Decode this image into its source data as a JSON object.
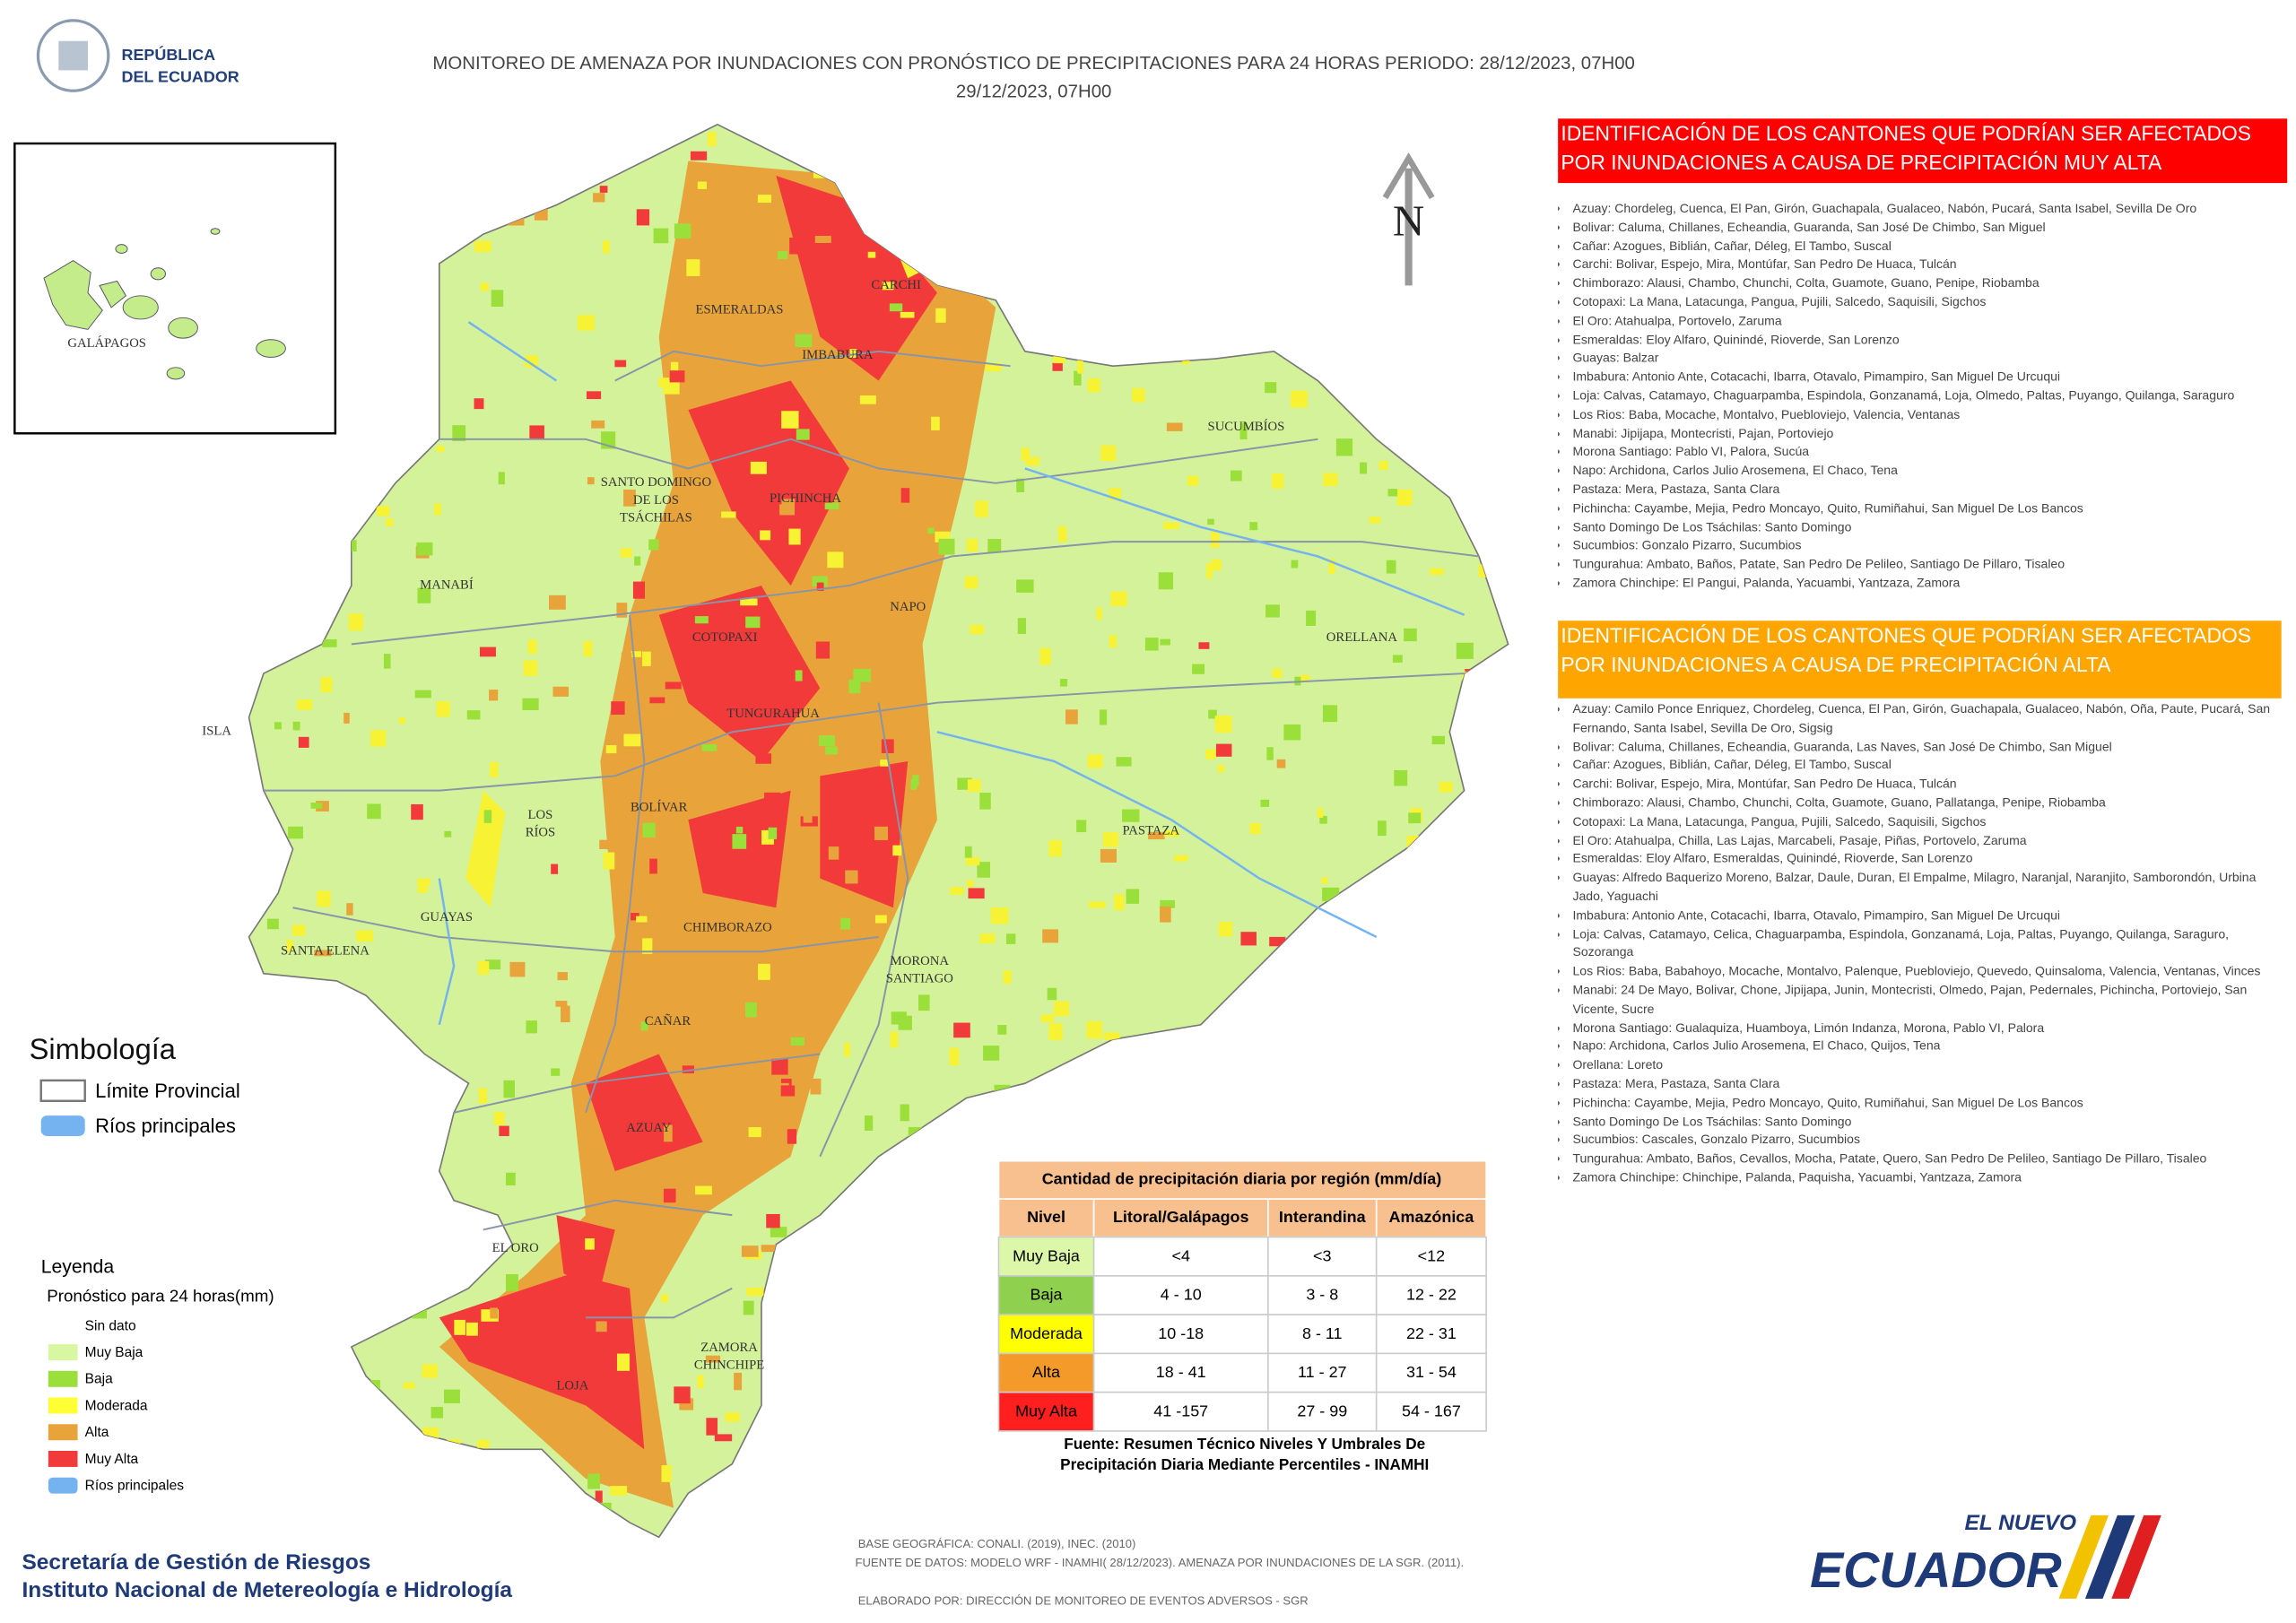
{
  "header": {
    "logo": [
      "REPÚBLICA",
      "DEL ECUADOR"
    ],
    "title": [
      "MONITOREO DE AMENAZA POR INUNDACIONES  CON PRONÓSTICO DE  PRECIPITACIONES PARA 24 HORAS  PERIODO: 28/12/2023, 07H00",
      "29/12/2023, 07H00"
    ]
  },
  "inset": {
    "label": "GALÁPAGOS"
  },
  "north": "N",
  "provinces": [
    [
      "ESMERALDAS"
    ],
    [
      "CARCHI"
    ],
    [
      "IMBABURA"
    ],
    [
      "SUCUMBÍOS"
    ],
    [
      "SANTO DOMINGO",
      "DE LOS",
      "TSÁCHILAS"
    ],
    [
      "PICHINCHA"
    ],
    [
      "MANABÍ"
    ],
    [
      "NAPO"
    ],
    [
      "COTOPAXI"
    ],
    [
      "ORELLANA"
    ],
    [
      "ISLA"
    ],
    [
      "TUNGURAHUA"
    ],
    [
      "BOLÍVAR"
    ],
    [
      "LOS",
      "RÍOS"
    ],
    [
      "PASTAZA"
    ],
    [
      "GUAYAS"
    ],
    [
      "CHIMBORAZO"
    ],
    [
      "SANTA ELENA"
    ],
    [
      "MORONA",
      "SANTIAGO"
    ],
    [
      "CAÑAR"
    ],
    [
      "AZUAY"
    ],
    [
      "EL ORO"
    ],
    [
      "ZAMORA",
      "CHINCHIPE"
    ],
    [
      "LOJA"
    ]
  ],
  "simbologia": {
    "title": "Simbología",
    "items": [
      "Límite Provincial",
      "Ríos principales"
    ]
  },
  "leyenda": {
    "title": "Leyenda",
    "subtitle": "Pronóstico para 24 horas(mm)",
    "items": [
      {
        "label": "Sin dato",
        "color": "#ffffff"
      },
      {
        "label": "Muy Baja",
        "color": "#d9f7a1"
      },
      {
        "label": "Baja",
        "color": "#9be03a"
      },
      {
        "label": "Moderada",
        "color": "#ffff33"
      },
      {
        "label": "Alta",
        "color": "#e8a33a"
      },
      {
        "label": "Muy Alta",
        "color": "#f23a3a"
      },
      {
        "label": "Ríos principales",
        "color": "#74b3f0"
      }
    ]
  },
  "table": {
    "title": "Cantidad de precipitación diaria por región (mm/día)",
    "headers": [
      "Nivel",
      "Litoral/Galápagos",
      "Interandina",
      "Amazónica"
    ],
    "rows": [
      [
        "Muy Baja",
        "<4",
        "<3",
        "<12"
      ],
      [
        "Baja",
        "4 - 10",
        "3 - 8",
        "12 - 22"
      ],
      [
        "Moderada",
        "10 -18",
        "8 - 11",
        "22 - 31"
      ],
      [
        "Alta",
        "18 - 41",
        "11 - 27",
        "31 - 54"
      ],
      [
        "Muy Alta",
        "41 -157",
        "27 - 99",
        "54 - 167"
      ]
    ],
    "row_colors": [
      "#ddf7a8",
      "#8fd14f",
      "#ffff00",
      "#f39a2b",
      "#ff1f1f"
    ],
    "source": [
      "Fuente: Resumen Técnico Niveles Y Umbrales De",
      "Precipitación Diaria Mediante Percentiles - INAMHI"
    ]
  },
  "panel_muy_alta": {
    "title": [
      "IDENTIFICACIÓN DE LOS CANTONES QUE PODRÍAN SER AFECTADOS",
      "POR INUNDACIONES  A CAUSA DE PRECIPITACIÓN MUY ALTA"
    ],
    "items": [
      "Azuay: Chordeleg, Cuenca, El Pan, Girón, Guachapala, Gualaceo, Nabón, Pucará, Santa Isabel, Sevilla De Oro",
      "Bolivar: Caluma, Chillanes, Echeandia, Guaranda, San José De Chimbo, San Miguel",
      "Cañar: Azogues, Biblián, Cañar, Déleg, El Tambo, Suscal",
      "Carchi: Bolivar, Espejo, Mira, Montúfar, San Pedro De Huaca, Tulcán",
      "Chimborazo: Alausi, Chambo, Chunchi, Colta, Guamote, Guano, Penipe, Riobamba",
      "Cotopaxi: La Mana, Latacunga, Pangua, Pujili, Salcedo, Saquisili, Sigchos",
      "El Oro: Atahualpa, Portovelo, Zaruma",
      "Esmeraldas: Eloy Alfaro, Quinindé, Rioverde, San Lorenzo",
      "Guayas: Balzar",
      "Imbabura: Antonio Ante, Cotacachi, Ibarra, Otavalo, Pimampiro, San Miguel De Urcuqui",
      "Loja: Calvas, Catamayo, Chaguarpamba, Espindola, Gonzanamá, Loja, Olmedo, Paltas, Puyango, Quilanga, Saraguro",
      "Los Rios: Baba, Mocache, Montalvo, Puebloviejo, Valencia, Ventanas",
      "Manabi: Jipijapa, Montecristi, Pajan, Portoviejo",
      "Morona Santiago: Pablo VI, Palora, Sucúa",
      "Napo: Archidona, Carlos Julio Arosemena, El Chaco, Tena",
      "Pastaza: Mera, Pastaza, Santa Clara",
      "Pichincha: Cayambe, Mejia, Pedro Moncayo, Quito, Rumiñahui, San Miguel De Los Bancos",
      "Santo Domingo De Los Tsáchilas: Santo Domingo",
      "Sucumbios: Gonzalo Pizarro, Sucumbios",
      "Tungurahua: Ambato, Baños, Patate, San Pedro De Pelileo, Santiago De Pillaro, Tisaleo",
      "Zamora Chinchipe: El Pangui, Palanda, Yacuambi, Yantzaza, Zamora"
    ]
  },
  "panel_alta": {
    "title": [
      "IDENTIFICACIÓN DE LOS CANTONES QUE  PODRÍAN SER AFECTADOS",
      "POR INUNDACIONES  A CAUSA DE PRECIPITACIÓN  ALTA"
    ],
    "items": [
      "Azuay: Camilo Ponce Enriquez, Chordeleg, Cuenca, El Pan, Girón, Guachapala, Gualaceo, Nabón, Oña, Paute, Pucará, San Fernando, Santa Isabel, Sevilla De Oro, Sigsig",
      "Bolivar: Caluma, Chillanes, Echeandia, Guaranda, Las Naves, San José De Chimbo, San Miguel",
      "Cañar: Azogues, Biblián, Cañar, Déleg, El Tambo, Suscal",
      "Carchi: Bolivar, Espejo, Mira, Montúfar, San Pedro De Huaca, Tulcán",
      "Chimborazo: Alausi, Chambo, Chunchi, Colta, Guamote, Guano, Pallatanga, Penipe, Riobamba",
      "Cotopaxi: La Mana, Latacunga, Pangua, Pujili, Salcedo, Saquisili, Sigchos",
      "El Oro: Atahualpa, Chilla, Las Lajas, Marcabeli, Pasaje, Piñas, Portovelo, Zaruma",
      "Esmeraldas: Eloy Alfaro, Esmeraldas, Quinindé, Rioverde, San Lorenzo",
      "Guayas: Alfredo Baquerizo Moreno, Balzar, Daule, Duran, El Empalme, Milagro, Naranjal, Naranjito, Samborondón, Urbina Jado, Yaguachi",
      "Imbabura: Antonio Ante, Cotacachi, Ibarra, Otavalo, Pimampiro, San Miguel De Urcuqui",
      "Loja: Calvas, Catamayo, Celica, Chaguarpamba, Espindola, Gonzanamá, Loja, Paltas, Puyango, Quilanga, Saraguro, Sozoranga",
      "Los Rios: Baba, Babahoyo, Mocache, Montalvo, Palenque, Puebloviejo, Quevedo, Quinsaloma, Valencia, Ventanas, Vinces",
      "Manabi: 24 De Mayo, Bolivar, Chone, Jipijapa, Junin, Montecristi, Olmedo, Pajan, Pedernales, Pichincha, Portoviejo, San Vicente, Sucre",
      "Morona Santiago: Gualaquiza, Huamboya, Limón Indanza, Morona, Pablo VI, Palora",
      "Napo: Archidona, Carlos Julio Arosemena, El Chaco, Quijos, Tena",
      "Orellana: Loreto",
      "Pastaza: Mera, Pastaza, Santa Clara",
      "Pichincha: Cayambe, Mejia, Pedro Moncayo, Quito, Rumiñahui, San Miguel De Los Bancos",
      "Santo Domingo De Los Tsáchilas: Santo Domingo",
      "Sucumbios: Cascales, Gonzalo Pizarro, Sucumbios",
      "Tungurahua: Ambato, Baños, Cevallos, Mocha, Patate, Quero, San Pedro De Pelileo, Santiago De Pillaro, Tisaleo",
      "Zamora Chinchipe: Chinchipe, Palanda, Paquisha, Yacuambi, Yantzaza, Zamora"
    ]
  },
  "footer": {
    "institutions": [
      "Secretaría de Gestión de Riesgos",
      "Instituto Nacional de Metereología e Hidrología"
    ],
    "notes": [
      "BASE GEOGRÁFICA: CONALI. (2019), INEC. (2010)",
      "FUENTE DE DATOS: MODELO WRF - INAMHI( 28/12/2023).  AMENAZA POR INUNDACIONES DE LA SGR. (2011).",
      "ELABORADO POR: DIRECCIÓN DE MONITOREO DE EVENTOS ADVERSOS - SGR"
    ],
    "brand": [
      "EL NUEVO",
      "ECUADOR"
    ]
  }
}
